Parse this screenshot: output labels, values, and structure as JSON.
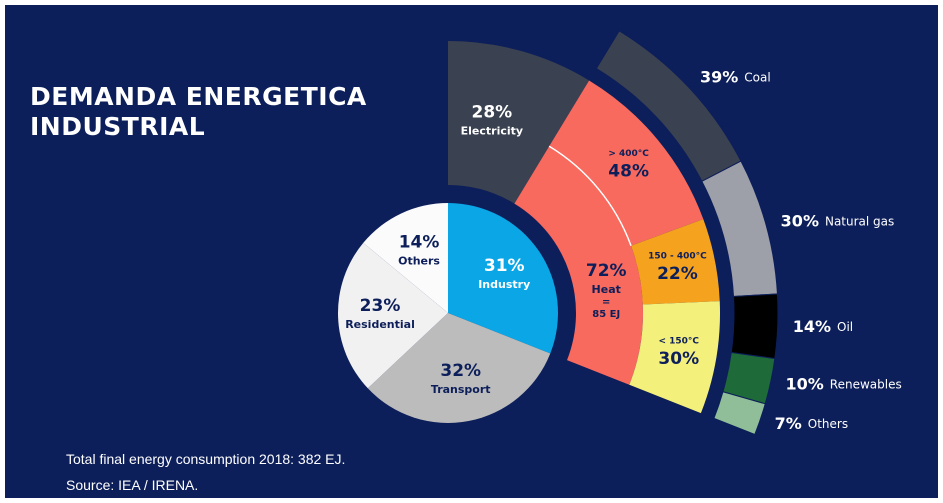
{
  "chart_data": {
    "type": "sunburst",
    "title": "DEMANDA ENERGETICA INDUSTRIAL",
    "note": "Total final energy consumption 2018: 382 EJ. Source: IEA / IRENA.",
    "sectors": {
      "categories": [
        "Industry",
        "Transport",
        "Residential",
        "Others"
      ],
      "values": [
        31,
        32,
        23,
        14
      ],
      "value_labels": [
        "31%",
        "32%",
        "23%",
        "14%"
      ],
      "colors": [
        "#0aa6e6",
        "#bcbcbc",
        "#f1f1f1",
        "#fbfbfb"
      ],
      "text_colors": [
        "#ffffff",
        "#0d1f5a",
        "#0d1f5a",
        "#0d1f5a"
      ]
    },
    "industry": {
      "categories": [
        "Electricity",
        "Heat"
      ],
      "values": [
        28,
        72
      ],
      "value_labels": [
        "28%",
        "72%"
      ],
      "colors": [
        "#3a4150",
        "#f8695e"
      ],
      "text_colors": [
        "#ffffff",
        "#0d1f5a"
      ],
      "heat_note": [
        "=",
        "85 EJ"
      ]
    },
    "heat": {
      "categories": [
        "> 400°C",
        "150 - 400°C",
        "< 150°C"
      ],
      "values": [
        48,
        22,
        30
      ],
      "value_labels": [
        "48%",
        "22%",
        "30%"
      ],
      "colors": [
        "#f8695e",
        "#f5a31e",
        "#f4f07c"
      ]
    },
    "sources": {
      "categories": [
        "Coal",
        "Natural gas",
        "Oil",
        "Renewables",
        "Others"
      ],
      "values": [
        39,
        30,
        14,
        10,
        7
      ],
      "value_labels": [
        "39%",
        "30%",
        "14%",
        "10%",
        "7%"
      ],
      "colors": [
        "#3a4150",
        "#9d9fa9",
        "#000000",
        "#1e6a38",
        "#8fbe98"
      ]
    }
  }
}
